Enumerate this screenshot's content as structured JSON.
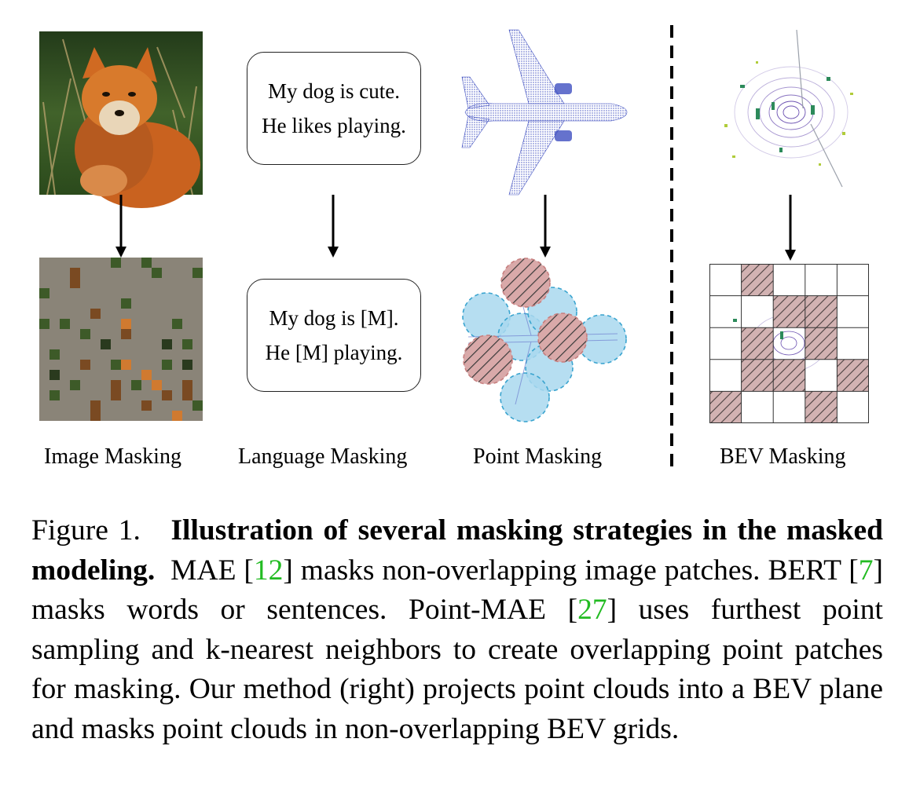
{
  "panels": {
    "image": {
      "label": "Image Masking"
    },
    "language": {
      "label": "Language Masking",
      "original_lines": [
        "My dog is cute.",
        "He likes playing."
      ],
      "masked_lines": [
        "My dog is [M].",
        "He [M] playing."
      ]
    },
    "point": {
      "label": "Point Masking"
    },
    "bev": {
      "label": "BEV Masking"
    }
  },
  "caption": {
    "figure_label": "Figure 1.",
    "title": "Illustration of several masking strategies in the masked modeling.",
    "t1": "MAE [",
    "c1": "12",
    "t2": "] masks non-overlapping image patches. BERT [",
    "c2": "7",
    "t3": "] masks words or sentences. Point-MAE [",
    "c3": "27",
    "t4": "] uses furthest point sampling and k-nearest neighbors to create overlapping point patches for masking. Our method (right) projects point clouds into a BEV plane and masks point clouds in non-overlapping BEV grids."
  },
  "colors": {
    "cite": "#22bb22",
    "mask_gray": "#8a8478",
    "hatch_red": "#c98f8f",
    "visible_blue": "#a9d8ee",
    "point_blue": "#3f4fc0"
  }
}
